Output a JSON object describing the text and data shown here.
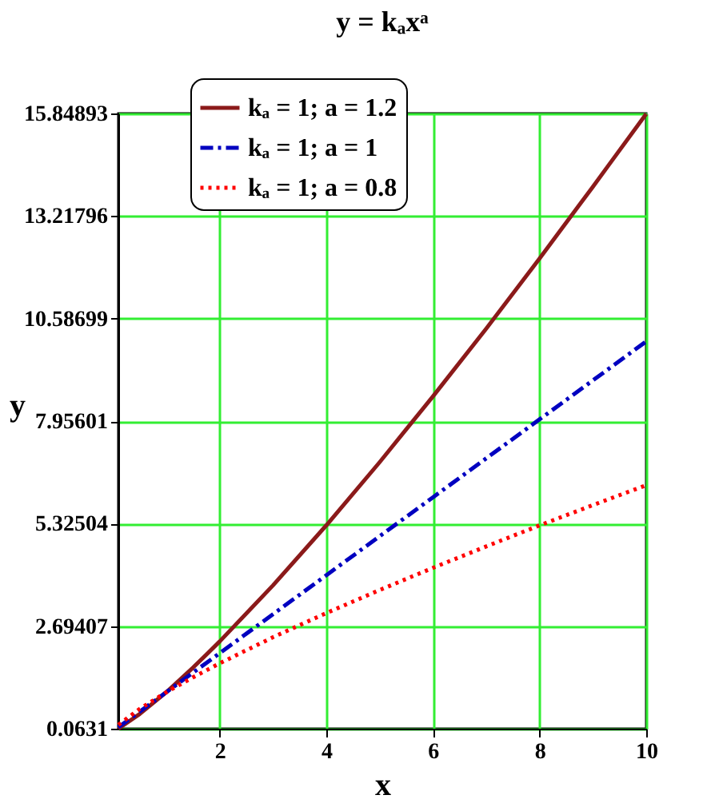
{
  "chart_data": {
    "type": "line",
    "title": "y = kₐxᵃ",
    "xlabel": "x",
    "ylabel": "y",
    "x": [
      0.1,
      0.5,
      1,
      1.5,
      2,
      3,
      4,
      5,
      6,
      7,
      8,
      9,
      10
    ],
    "series": [
      {
        "name": "kₐ = 1; a = 1.2",
        "color": "#8b1a1a",
        "line_style": "solid",
        "values": [
          0.0631,
          0.44,
          1,
          1.63,
          2.3,
          3.74,
          5.28,
          6.9,
          8.59,
          10.33,
          12.13,
          13.97,
          15.84
        ]
      },
      {
        "name": "kₐ = 1; a = 1",
        "color": "#0000c0",
        "line_style": "dashdot",
        "values": [
          0.1,
          0.5,
          1,
          1.5,
          2,
          3,
          4,
          5,
          6,
          7,
          8,
          9,
          10
        ]
      },
      {
        "name": "kₐ = 1; a = 0.8",
        "color": "#ff0000",
        "line_style": "dotted",
        "values": [
          0.16,
          0.57,
          1,
          1.38,
          1.74,
          2.41,
          3.03,
          3.62,
          4.19,
          4.74,
          5.28,
          5.8,
          6.31
        ]
      }
    ],
    "xlim": [
      0.1,
      10
    ],
    "xticks": [
      2,
      4,
      6,
      8,
      10
    ],
    "ylim": [
      0.0631,
      15.84893
    ],
    "yticks": [
      {
        "value": 0.0631,
        "label": "0.0631"
      },
      {
        "value": 2.69407,
        "label": "2.69407"
      },
      {
        "value": 5.32504,
        "label": "5.32504"
      },
      {
        "value": 7.95601,
        "label": "7.95601"
      },
      {
        "value": 10.58699,
        "label": "10.58699"
      },
      {
        "value": 13.21796,
        "label": "13.21796"
      },
      {
        "value": 15.84893,
        "label": "15.84893"
      }
    ],
    "grid": true,
    "legend": "top",
    "marker": "none"
  }
}
